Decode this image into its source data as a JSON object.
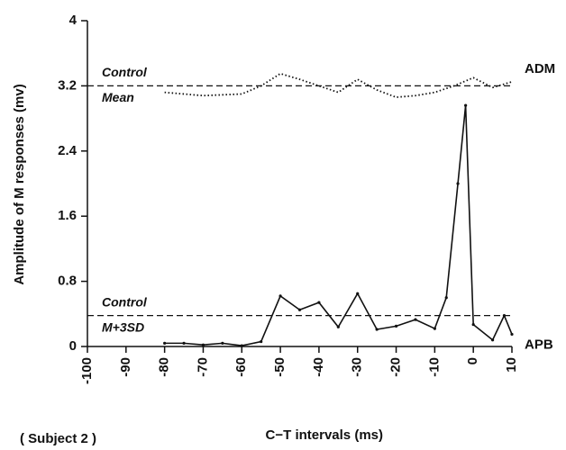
{
  "chart_data": {
    "type": "line",
    "xlabel": "C−T intervals (ms)",
    "ylabel": "Amplitude of M responses (mv)",
    "note": "( Subject 2 )",
    "xlim": [
      -100,
      10
    ],
    "xticks": [
      -100,
      -90,
      -80,
      -70,
      -60,
      -50,
      -40,
      -30,
      -20,
      -10,
      0,
      10
    ],
    "ylim": [
      0,
      4
    ],
    "yticks": [
      0,
      0.8,
      1.6,
      2.4,
      3.2,
      4
    ],
    "series": [
      {
        "name": "ADM",
        "color": "#111111",
        "style": "dotted",
        "x": [
          -80,
          -70,
          -60,
          -55,
          -50,
          -45,
          -40,
          -35,
          -30,
          -25,
          -20,
          -15,
          -10,
          -5,
          0,
          5,
          10
        ],
        "values": [
          3.12,
          3.08,
          3.1,
          3.2,
          3.35,
          3.28,
          3.2,
          3.12,
          3.28,
          3.15,
          3.06,
          3.08,
          3.12,
          3.2,
          3.3,
          3.18,
          3.25
        ]
      },
      {
        "name": "APB",
        "color": "#111111",
        "style": "solid",
        "x": [
          -80,
          -75,
          -70,
          -65,
          -60,
          -55,
          -50,
          -45,
          -40,
          -35,
          -30,
          -25,
          -20,
          -15,
          -10,
          -7,
          -4,
          -2,
          0,
          5,
          8,
          10
        ],
        "values": [
          0.04,
          0.04,
          0.02,
          0.04,
          0.01,
          0.06,
          0.62,
          0.45,
          0.54,
          0.24,
          0.65,
          0.21,
          0.25,
          0.33,
          0.22,
          0.6,
          2.0,
          2.96,
          0.27,
          0.08,
          0.38,
          0.15
        ]
      }
    ],
    "reference_lines": [
      {
        "value": 3.2,
        "labels": [
          "Control",
          "Mean"
        ]
      },
      {
        "value": 0.38,
        "labels": [
          "Control",
          "M+3SD"
        ]
      }
    ]
  }
}
